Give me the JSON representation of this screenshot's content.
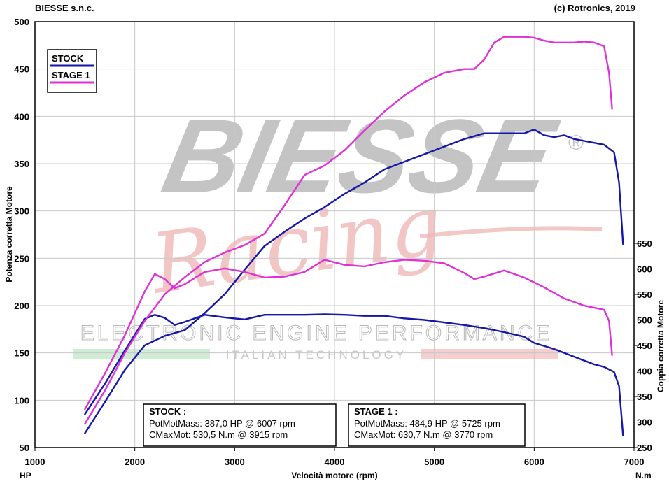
{
  "header": {
    "left": "BIESSE s.n.c.",
    "right": "(c) Rotronics, 2019"
  },
  "watermark": {
    "brand": "BIESSE",
    "registered": "®",
    "script": "Racing",
    "tagline": "ELECTRONIC ENGINE PERFORMANCE",
    "subtag": "ITALIAN TECHNOLOGY"
  },
  "colors": {
    "stock": "#1616a8",
    "stage1": "#e030d8",
    "grid": "#c8c8c8",
    "watermark_gray": "#c4c4c4",
    "watermark_red": "#f0b4b4",
    "watermark_green": "#a8dcb0"
  },
  "chart_data": {
    "type": "line",
    "xlabel": "Velocità motore (rpm)",
    "ylabel_left": "Potenza corretta Motore",
    "ylabel_right": "Coppia corretta Motore",
    "unit_left": "HP",
    "unit_right": "N.m",
    "xlim": [
      1000,
      7000
    ],
    "ylim_left": [
      50,
      500
    ],
    "ylim_right": [
      250,
      650
    ],
    "x_ticks": [
      1000,
      2000,
      3000,
      4000,
      5000,
      6000,
      7000
    ],
    "y_ticks_left": [
      50,
      100,
      150,
      200,
      250,
      300,
      350,
      400,
      450,
      500
    ],
    "y_ticks_right": [
      250,
      300,
      350,
      400,
      450,
      500,
      550,
      600,
      650
    ],
    "grid": true,
    "legend": {
      "placement": "top-left",
      "entries": [
        {
          "label": "STOCK",
          "series": "stock"
        },
        {
          "label": "STAGE 1",
          "series": "stage1"
        }
      ]
    },
    "series": [
      {
        "name": "STOCK",
        "key": "stock",
        "quantity": "power",
        "axis": "left",
        "x": [
          1500,
          1700,
          1900,
          2100,
          2300,
          2500,
          2700,
          2900,
          3100,
          3300,
          3500,
          3700,
          3900,
          4100,
          4300,
          4500,
          4700,
          4900,
          5100,
          5300,
          5500,
          5700,
          5900,
          6000,
          6100,
          6200,
          6300,
          6400,
          6500,
          6600,
          6700,
          6800,
          6850,
          6890
        ],
        "y": [
          65,
          98,
          132,
          158,
          168,
          174,
          192,
          212,
          238,
          263,
          278,
          292,
          304,
          318,
          330,
          344,
          352,
          360,
          368,
          376,
          382,
          382,
          382,
          386,
          380,
          378,
          380,
          376,
          374,
          372,
          370,
          362,
          330,
          265
        ]
      },
      {
        "name": "STOCK",
        "key": "stock",
        "quantity": "torque",
        "axis": "right",
        "x": [
          1500,
          1700,
          1900,
          2100,
          2200,
          2300,
          2400,
          2500,
          2700,
          2900,
          3100,
          3300,
          3500,
          3700,
          3900,
          4100,
          4300,
          4500,
          4700,
          4900,
          5100,
          5300,
          5500,
          5700,
          5900,
          6000,
          6200,
          6400,
          6600,
          6700,
          6800,
          6850,
          6890
        ],
        "y": [
          315,
          375,
          440,
          502,
          510,
          504,
          490,
          496,
          510,
          505,
          501,
          510,
          510,
          510,
          511,
          510,
          508,
          508,
          503,
          500,
          495,
          490,
          484,
          476,
          467,
          455,
          443,
          428,
          413,
          408,
          398,
          370,
          274
        ]
      },
      {
        "name": "STAGE 1",
        "key": "stage1",
        "quantity": "power",
        "axis": "left",
        "x": [
          1500,
          1700,
          1900,
          2100,
          2300,
          2500,
          2700,
          2900,
          3100,
          3300,
          3500,
          3700,
          3900,
          4100,
          4300,
          4500,
          4700,
          4900,
          5100,
          5300,
          5400,
          5500,
          5600,
          5700,
          5800,
          5900,
          6000,
          6100,
          6200,
          6300,
          6400,
          6500,
          6600,
          6700,
          6750,
          6780
        ],
        "y": [
          75,
          110,
          150,
          184,
          212,
          230,
          246,
          256,
          264,
          276,
          306,
          338,
          348,
          364,
          385,
          405,
          422,
          436,
          446,
          450,
          450,
          460,
          478,
          484,
          484,
          484,
          483,
          480,
          478,
          478,
          478,
          479,
          478,
          474,
          446,
          408
        ]
      },
      {
        "name": "STAGE 1",
        "key": "stage1",
        "quantity": "torque",
        "axis": "right",
        "x": [
          1500,
          1700,
          1900,
          2100,
          2200,
          2300,
          2400,
          2500,
          2700,
          2900,
          3100,
          3300,
          3500,
          3700,
          3900,
          4100,
          4300,
          4500,
          4700,
          4900,
          5100,
          5300,
          5400,
          5500,
          5700,
          5900,
          6100,
          6300,
          6500,
          6700,
          6750,
          6780
        ],
        "y": [
          325,
          395,
          470,
          556,
          590,
          580,
          562,
          570,
          594,
          601,
          594,
          583,
          585,
          594,
          618,
          608,
          605,
          613,
          618,
          616,
          611,
          592,
          580,
          585,
          597,
          583,
          564,
          542,
          528,
          520,
          498,
          431
        ]
      }
    ]
  },
  "info_boxes": [
    {
      "key": "stock",
      "title": "STOCK :",
      "line1": "PotMotMass: 387,0 HP @ 6007 rpm",
      "line2": "CMaxMot: 530,5 N.m @ 3915 rpm"
    },
    {
      "key": "stage1",
      "title": "STAGE 1 :",
      "line1": "PotMotMass: 484,9 HP @ 5725 rpm",
      "line2": "CMaxMot: 630,7 N.m @ 3770 rpm"
    }
  ]
}
